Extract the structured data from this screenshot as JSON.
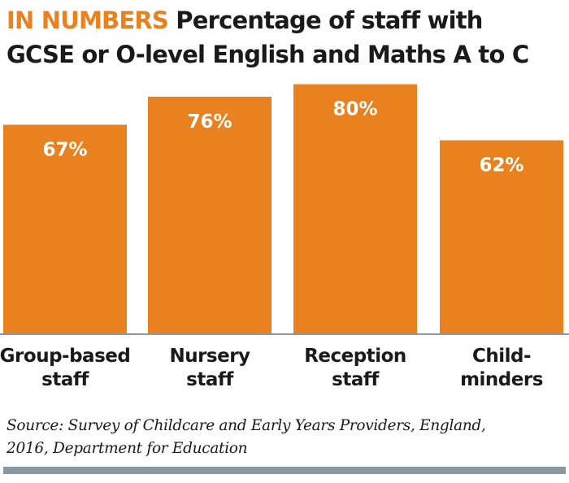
{
  "header": {
    "kicker": "IN NUMBERS",
    "title_line1": "Percentage of staff with",
    "title_line2": "GCSE or O-level English and Maths A to C"
  },
  "chart_data": {
    "type": "bar",
    "categories": [
      "Group-based staff",
      "Nursery staff",
      "Reception staff",
      "Child-minders"
    ],
    "category_lines": [
      [
        "Group-based",
        "staff"
      ],
      [
        "Nursery",
        "staff"
      ],
      [
        "Reception",
        "staff"
      ],
      [
        "Child-",
        "minders"
      ]
    ],
    "values": [
      67,
      76,
      80,
      62
    ],
    "value_labels": [
      "67%",
      "76%",
      "80%",
      "62%"
    ],
    "ylim": [
      0,
      100
    ],
    "grid": false,
    "bar_color": "#e8811e",
    "value_label_color": "#ffffff",
    "axis_color": "#8b98a0"
  },
  "source": {
    "line1": "Source: Survey of Childcare and Early Years Providers, England,",
    "line2": "2016, Department for Education"
  },
  "colors": {
    "accent": "#e8811e",
    "text": "#1a1a1a",
    "rule": "#8b98a0"
  }
}
